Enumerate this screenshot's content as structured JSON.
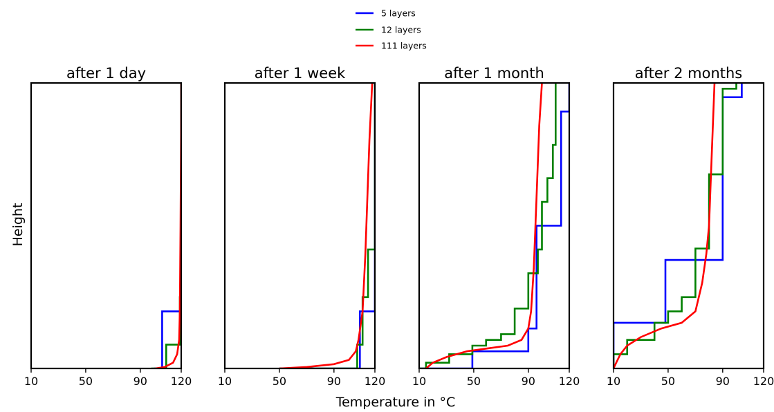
{
  "figure": {
    "xlabel": "Temperature in °C",
    "ylabel": "Height"
  },
  "legend": {
    "placement": "top-center",
    "entries": [
      {
        "label": "5 layers",
        "color": "#0000ff"
      },
      {
        "label": "12 layers",
        "color": "#008000"
      },
      {
        "label": "111 layers",
        "color": "#ff0000"
      }
    ]
  },
  "chart_data": [
    {
      "type": "line",
      "title": "after 1 day",
      "xlim": [
        10,
        120
      ],
      "ylim": [
        0,
        1
      ],
      "xticks": [
        "10",
        "50",
        "90",
        "120"
      ],
      "series": [
        {
          "name": "5 layers",
          "color": "#0000ff",
          "step": true,
          "x": [
            120,
            120,
            120,
            120,
            106,
            100
          ],
          "y": [
            1.0,
            0.8,
            0.6,
            0.4,
            0.2,
            0.0
          ]
        },
        {
          "name": "12 layers",
          "color": "#008000",
          "step": true,
          "x": [
            120,
            120,
            120,
            120,
            120,
            120,
            120,
            120,
            120,
            119,
            109,
            98
          ],
          "y": [
            1.0,
            0.9167,
            0.8333,
            0.75,
            0.6667,
            0.5833,
            0.5,
            0.4167,
            0.3333,
            0.25,
            0.0833,
            0.0
          ]
        },
        {
          "name": "111 layers",
          "color": "#ff0000",
          "step": false,
          "x": [
            101,
            108,
            114,
            117,
            118.5,
            119,
            119.5,
            120,
            120
          ],
          "y": [
            0.0,
            0.005,
            0.02,
            0.05,
            0.1,
            0.2,
            0.5,
            0.9,
            1.0
          ]
        }
      ]
    },
    {
      "type": "line",
      "title": "after 1 week",
      "xlim": [
        10,
        120
      ],
      "ylim": [
        0,
        1
      ],
      "xticks": [
        "10",
        "50",
        "90",
        "120"
      ],
      "series": [
        {
          "name": "5 layers",
          "color": "#0000ff",
          "step": true,
          "x": [
            120,
            120,
            120,
            120,
            109,
            91,
            50
          ],
          "y": [
            1.0,
            0.8,
            0.6,
            0.4,
            0.2,
            0.0,
            0.0
          ]
        },
        {
          "name": "12 layers",
          "color": "#008000",
          "step": true,
          "x": [
            120,
            120,
            120,
            120,
            120,
            115,
            115,
            111,
            111,
            107,
            96,
            67,
            50
          ],
          "y": [
            1.0,
            0.9167,
            0.8333,
            0.75,
            0.6667,
            0.4167,
            0.3333,
            0.25,
            0.1667,
            0.0833,
            0.0,
            0.0,
            0.0
          ]
        },
        {
          "name": "111 layers",
          "color": "#ff0000",
          "step": false,
          "x": [
            50,
            70,
            90,
            101,
            106,
            108,
            111,
            113,
            116,
            118
          ],
          "y": [
            0.0,
            0.005,
            0.015,
            0.03,
            0.06,
            0.1,
            0.2,
            0.4,
            0.8,
            1.0
          ]
        }
      ]
    },
    {
      "type": "line",
      "title": "after 1 month",
      "xlim": [
        10,
        120
      ],
      "ylim": [
        0,
        1
      ],
      "xticks": [
        "10",
        "50",
        "90",
        "120"
      ],
      "series": [
        {
          "name": "5 layers",
          "color": "#0000ff",
          "step": true,
          "x": [
            120,
            114,
            104,
            96,
            90,
            49,
            10
          ],
          "y": [
            1.0,
            0.9,
            0.5,
            0.5,
            0.14,
            0.06,
            0.0
          ]
        },
        {
          "name": "12 layers",
          "color": "#008000",
          "step": true,
          "x": [
            110,
            110,
            108,
            104,
            100,
            97,
            90,
            90,
            80,
            70,
            59,
            49,
            32,
            15,
            10
          ],
          "y": [
            1.0,
            0.9167,
            0.7833,
            0.6667,
            0.5833,
            0.4167,
            0.3333,
            0.25,
            0.21,
            0.12,
            0.1,
            0.08,
            0.05,
            0.02,
            0.0
          ]
        },
        {
          "name": "111 layers",
          "color": "#ff0000",
          "step": false,
          "x": [
            15,
            20,
            30,
            45,
            60,
            75,
            85,
            90,
            92,
            94,
            96,
            98,
            100
          ],
          "y": [
            0.0,
            0.02,
            0.04,
            0.06,
            0.07,
            0.08,
            0.1,
            0.14,
            0.2,
            0.35,
            0.6,
            0.85,
            1.0
          ]
        }
      ]
    },
    {
      "type": "line",
      "title": "after 2 months",
      "xlim": [
        10,
        120
      ],
      "ylim": [
        0,
        1
      ],
      "xticks": [
        "10",
        "50",
        "90",
        "120"
      ],
      "series": [
        {
          "name": "5 layers",
          "color": "#0000ff",
          "step": true,
          "x": [
            104,
            90,
            90,
            48,
            10
          ],
          "y": [
            1.0,
            0.95,
            0.68,
            0.38,
            0.16
          ]
        },
        {
          "name": "12 layers",
          "color": "#008000",
          "step": true,
          "x": [
            100,
            90,
            90,
            80,
            80,
            70,
            60,
            50,
            40,
            20,
            10
          ],
          "y": [
            1.0,
            0.98,
            0.95,
            0.68,
            0.42,
            0.42,
            0.25,
            0.2,
            0.16,
            0.1,
            0.05
          ]
        },
        {
          "name": "111 layers",
          "color": "#ff0000",
          "step": false,
          "x": [
            10,
            12,
            15,
            20,
            30,
            45,
            60,
            70,
            75,
            78,
            80,
            82,
            84
          ],
          "y": [
            0.0,
            0.02,
            0.05,
            0.08,
            0.11,
            0.14,
            0.16,
            0.2,
            0.3,
            0.4,
            0.5,
            0.75,
            1.0
          ]
        }
      ]
    }
  ]
}
